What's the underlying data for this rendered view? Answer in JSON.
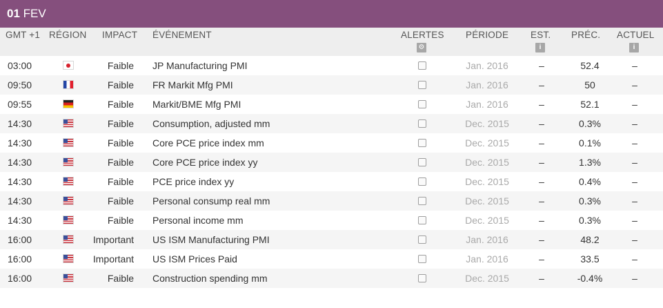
{
  "header": {
    "day": "01",
    "month": "FEV"
  },
  "columns": {
    "time": "GMT +1",
    "region": "RÉGION",
    "impact": "IMPACT",
    "event": "ÉVÉNEMENT",
    "alerts": "ALERTES",
    "period": "PÉRIODE",
    "est": "EST.",
    "prec": "PRÉC.",
    "actuel": "ACTUEL"
  },
  "icons": {
    "alerts": "gear-icon",
    "est": "info-icon",
    "actuel": "info-icon"
  },
  "colors": {
    "header_bg": "#854f7d",
    "header_text": "#ffffff",
    "thead_bg": "#eeeeee",
    "row_alt_bg": "#f5f5f5",
    "period_text": "#a9a9a9"
  },
  "rows": [
    {
      "time": "03:00",
      "flag": "jp",
      "impact": "Faible",
      "event": "JP Manufacturing PMI",
      "period": "Jan. 2016",
      "est": "–",
      "prec": "52.4",
      "actuel": "–"
    },
    {
      "time": "09:50",
      "flag": "fr",
      "impact": "Faible",
      "event": "FR Markit Mfg PMI",
      "period": "Jan. 2016",
      "est": "–",
      "prec": "50",
      "actuel": "–"
    },
    {
      "time": "09:55",
      "flag": "de",
      "impact": "Faible",
      "event": "Markit/BME Mfg PMI",
      "period": "Jan. 2016",
      "est": "–",
      "prec": "52.1",
      "actuel": "–"
    },
    {
      "time": "14:30",
      "flag": "us",
      "impact": "Faible",
      "event": "Consumption, adjusted mm",
      "period": "Dec. 2015",
      "est": "–",
      "prec": "0.3%",
      "actuel": "–"
    },
    {
      "time": "14:30",
      "flag": "us",
      "impact": "Faible",
      "event": "Core PCE price index mm",
      "period": "Dec. 2015",
      "est": "–",
      "prec": "0.1%",
      "actuel": "–"
    },
    {
      "time": "14:30",
      "flag": "us",
      "impact": "Faible",
      "event": "Core PCE price index yy",
      "period": "Dec. 2015",
      "est": "–",
      "prec": "1.3%",
      "actuel": "–"
    },
    {
      "time": "14:30",
      "flag": "us",
      "impact": "Faible",
      "event": "PCE price index yy",
      "period": "Dec. 2015",
      "est": "–",
      "prec": "0.4%",
      "actuel": "–"
    },
    {
      "time": "14:30",
      "flag": "us",
      "impact": "Faible",
      "event": "Personal consump real mm",
      "period": "Dec. 2015",
      "est": "–",
      "prec": "0.3%",
      "actuel": "–"
    },
    {
      "time": "14:30",
      "flag": "us",
      "impact": "Faible",
      "event": "Personal income mm",
      "period": "Dec. 2015",
      "est": "–",
      "prec": "0.3%",
      "actuel": "–"
    },
    {
      "time": "16:00",
      "flag": "us",
      "impact": "Important",
      "event": "US ISM Manufacturing PMI",
      "period": "Jan. 2016",
      "est": "–",
      "prec": "48.2",
      "actuel": "–"
    },
    {
      "time": "16:00",
      "flag": "us",
      "impact": "Important",
      "event": "US ISM Prices Paid",
      "period": "Jan. 2016",
      "est": "–",
      "prec": "33.5",
      "actuel": "–"
    },
    {
      "time": "16:00",
      "flag": "us",
      "impact": "Faible",
      "event": "Construction spending mm",
      "period": "Dec. 2015",
      "est": "–",
      "prec": "-0.4%",
      "actuel": "–"
    }
  ]
}
